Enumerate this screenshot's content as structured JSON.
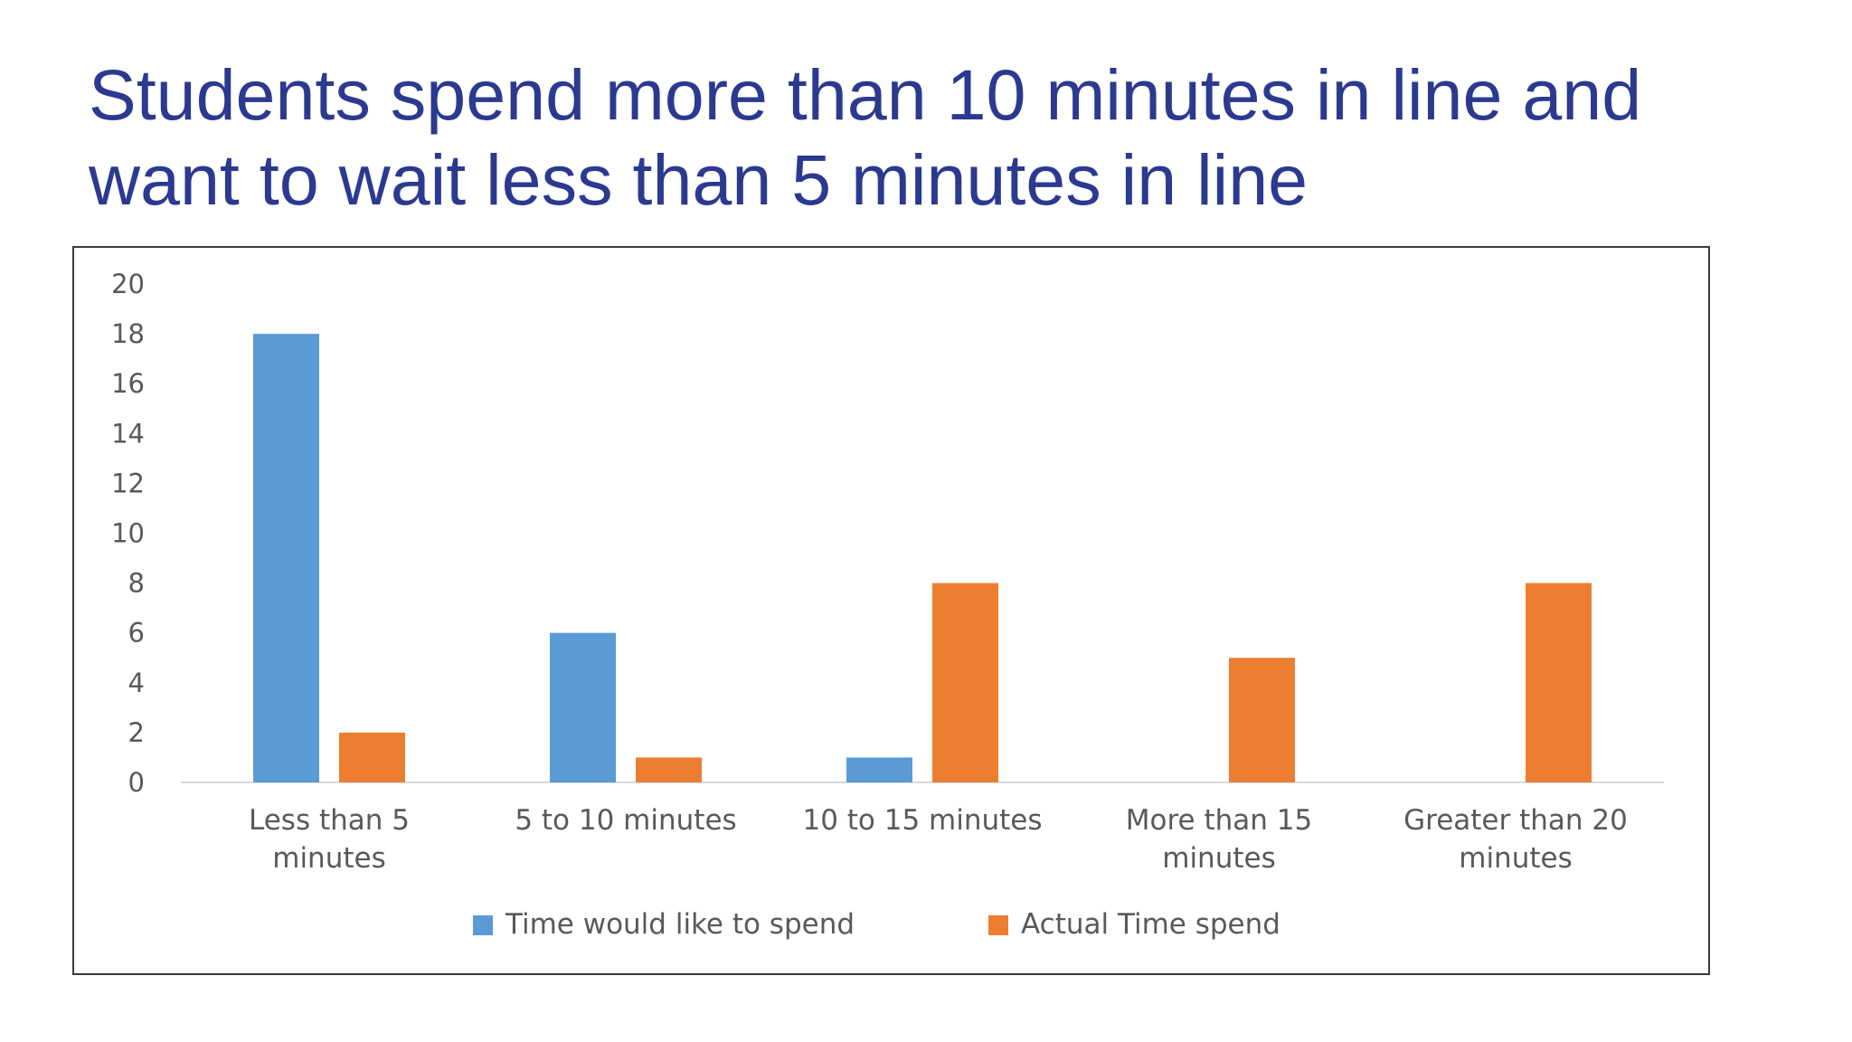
{
  "slide": {
    "title": "Students spend more than 10 minutes in line and want to wait less than 5 minutes in line"
  },
  "chart_data": {
    "type": "bar",
    "categories": [
      [
        "Less than 5",
        "minutes"
      ],
      [
        "5 to 10 minutes"
      ],
      [
        "10 to 15 minutes"
      ],
      [
        "More than 15",
        "minutes"
      ],
      [
        "Greater than 20",
        "minutes"
      ]
    ],
    "series": [
      {
        "name": "Time would like to spend",
        "color": "#5b9bd5",
        "values": [
          18,
          6,
          1,
          0,
          0
        ]
      },
      {
        "name": "Actual Time spend",
        "color": "#ed7d31",
        "values": [
          2,
          1,
          8,
          5,
          8
        ]
      }
    ],
    "ylim": [
      0,
      20
    ],
    "yticks": [
      0,
      2,
      4,
      6,
      8,
      10,
      12,
      14,
      16,
      18,
      20
    ],
    "xlabel": "",
    "ylabel": "",
    "legend_position": "bottom",
    "grid": false
  }
}
